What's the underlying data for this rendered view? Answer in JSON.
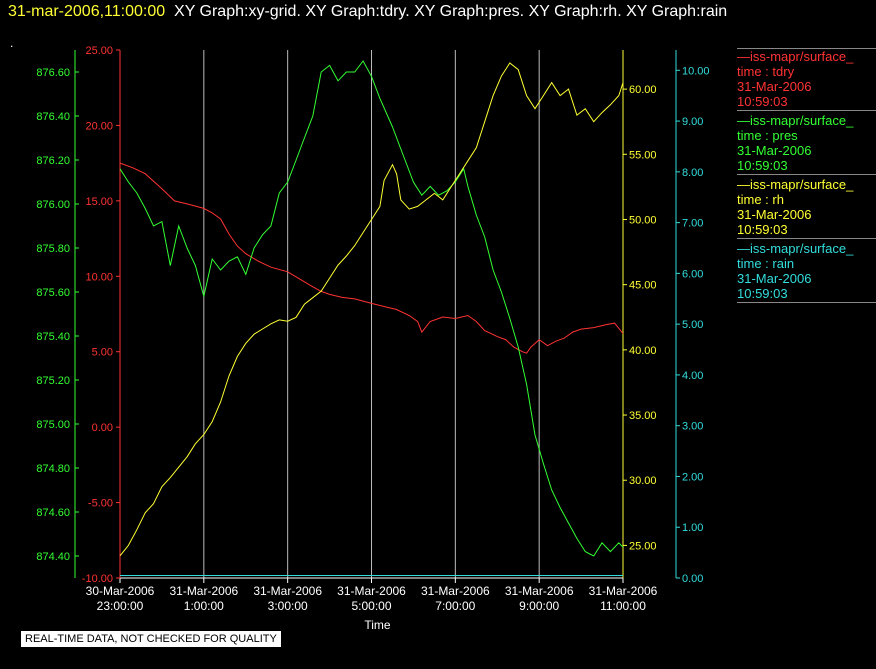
{
  "header": {
    "date": "31-mar-2006,11:00:00",
    "graphs": "XY Graph:xy-grid.  XY Graph:tdry.  XY Graph:pres.  XY Graph:rh.  XY Graph:rain"
  },
  "dot": ".",
  "legend": [
    {
      "name": "iss-mapr/surface_",
      "line1": "time : tdry",
      "line2": "31-Mar-2006",
      "line3": "10:59:03",
      "color": "#ff3333"
    },
    {
      "name": "iss-mapr/surface_",
      "line1": "time : pres",
      "line2": "31-Mar-2006",
      "line3": "10:59:03",
      "color": "#33ff33"
    },
    {
      "name": "iss-mapr/surface_",
      "line1": "time : rh",
      "line2": "31-Mar-2006",
      "line3": "10:59:03",
      "color": "#ffff33"
    },
    {
      "name": "iss-mapr/surface_",
      "line1": "time : rain",
      "line2": "31-Mar-2006",
      "line3": "10:59:03",
      "color": "#33dddd"
    }
  ],
  "footer": "REAL-TIME DATA, NOT CHECKED FOR QUALITY",
  "chart_data": {
    "type": "line",
    "xlabel": "Time",
    "x_ticks": [
      {
        "date": "30-Mar-2006",
        "time": "23:00:00",
        "hours": 0
      },
      {
        "date": "31-Mar-2006",
        "time": "1:00:00",
        "hours": 2
      },
      {
        "date": "31-Mar-2006",
        "time": "3:00:00",
        "hours": 4
      },
      {
        "date": "31-Mar-2006",
        "time": "5:00:00",
        "hours": 6
      },
      {
        "date": "31-Mar-2006",
        "time": "7:00:00",
        "hours": 8
      },
      {
        "date": "31-Mar-2006",
        "time": "9:00:00",
        "hours": 10
      },
      {
        "date": "31-Mar-2006",
        "time": "11:00:00",
        "hours": 12
      }
    ],
    "xlim": [
      0,
      12
    ],
    "grid_x": true,
    "axes": {
      "pres": {
        "color": "#33ff33",
        "range": [
          874.3,
          876.7
        ],
        "ticks": [
          "874.40",
          "874.60",
          "874.80",
          "875.00",
          "875.20",
          "875.40",
          "875.60",
          "875.80",
          "876.00",
          "876.20",
          "876.40",
          "876.60"
        ]
      },
      "tdry": {
        "color": "#ff3333",
        "range": [
          -10,
          25
        ],
        "ticks": [
          "-10.00",
          "-5.00",
          "0.00",
          "5.00",
          "10.00",
          "15.00",
          "20.00",
          "25.00"
        ]
      },
      "rh": {
        "color": "#ffff33",
        "range": [
          22.5,
          63.0
        ],
        "ticks": [
          "25.00",
          "30.00",
          "35.00",
          "40.00",
          "45.00",
          "50.00",
          "55.00",
          "60.00"
        ]
      },
      "rain": {
        "color": "#33dddd",
        "range": [
          0,
          10.4
        ],
        "ticks": [
          "0.00",
          "1.00",
          "2.00",
          "3.00",
          "4.00",
          "5.00",
          "6.00",
          "7.00",
          "8.00",
          "9.00",
          "10.00"
        ]
      }
    },
    "series": [
      {
        "name": "time : tdry",
        "axis": "tdry",
        "points": [
          [
            0,
            17.5
          ],
          [
            0.3,
            17.2
          ],
          [
            0.6,
            16.8
          ],
          [
            1.0,
            15.8
          ],
          [
            1.3,
            15.0
          ],
          [
            1.6,
            14.8
          ],
          [
            2.0,
            14.5
          ],
          [
            2.2,
            14.2
          ],
          [
            2.4,
            13.8
          ],
          [
            2.6,
            12.8
          ],
          [
            2.8,
            12.0
          ],
          [
            3.0,
            11.5
          ],
          [
            3.3,
            11.0
          ],
          [
            3.6,
            10.6
          ],
          [
            4.0,
            10.3
          ],
          [
            4.3,
            9.8
          ],
          [
            4.6,
            9.3
          ],
          [
            4.8,
            9.0
          ],
          [
            5.0,
            8.8
          ],
          [
            5.3,
            8.6
          ],
          [
            5.6,
            8.5
          ],
          [
            6.0,
            8.2
          ],
          [
            6.3,
            8.0
          ],
          [
            6.6,
            7.8
          ],
          [
            6.9,
            7.4
          ],
          [
            7.1,
            7.0
          ],
          [
            7.2,
            6.3
          ],
          [
            7.4,
            7.0
          ],
          [
            7.7,
            7.3
          ],
          [
            8.0,
            7.2
          ],
          [
            8.3,
            7.4
          ],
          [
            8.5,
            7.0
          ],
          [
            8.7,
            6.4
          ],
          [
            9.0,
            6.0
          ],
          [
            9.2,
            5.8
          ],
          [
            9.4,
            5.3
          ],
          [
            9.6,
            5.0
          ],
          [
            9.7,
            4.9
          ],
          [
            9.8,
            5.3
          ],
          [
            10.0,
            5.8
          ],
          [
            10.2,
            5.4
          ],
          [
            10.4,
            5.7
          ],
          [
            10.6,
            5.9
          ],
          [
            10.8,
            6.3
          ],
          [
            11.0,
            6.5
          ],
          [
            11.3,
            6.6
          ],
          [
            11.6,
            6.8
          ],
          [
            11.8,
            6.9
          ],
          [
            12.0,
            6.2
          ]
        ]
      },
      {
        "name": "time : pres",
        "axis": "pres",
        "points": [
          [
            0,
            876.16
          ],
          [
            0.2,
            876.1
          ],
          [
            0.4,
            876.05
          ],
          [
            0.6,
            875.98
          ],
          [
            0.8,
            875.9
          ],
          [
            1.0,
            875.92
          ],
          [
            1.2,
            875.72
          ],
          [
            1.4,
            875.9
          ],
          [
            1.6,
            875.8
          ],
          [
            1.8,
            875.72
          ],
          [
            2.0,
            875.58
          ],
          [
            2.2,
            875.75
          ],
          [
            2.4,
            875.7
          ],
          [
            2.6,
            875.74
          ],
          [
            2.8,
            875.76
          ],
          [
            3.0,
            875.68
          ],
          [
            3.2,
            875.8
          ],
          [
            3.4,
            875.86
          ],
          [
            3.6,
            875.9
          ],
          [
            3.8,
            876.05
          ],
          [
            4.0,
            876.1
          ],
          [
            4.2,
            876.2
          ],
          [
            4.4,
            876.3
          ],
          [
            4.6,
            876.4
          ],
          [
            4.8,
            876.6
          ],
          [
            5.0,
            876.63
          ],
          [
            5.2,
            876.56
          ],
          [
            5.4,
            876.6
          ],
          [
            5.6,
            876.6
          ],
          [
            5.8,
            876.65
          ],
          [
            6.0,
            876.58
          ],
          [
            6.2,
            876.48
          ],
          [
            6.5,
            876.35
          ],
          [
            6.8,
            876.2
          ],
          [
            7.0,
            876.1
          ],
          [
            7.2,
            876.04
          ],
          [
            7.4,
            876.08
          ],
          [
            7.6,
            876.04
          ],
          [
            7.8,
            876.06
          ],
          [
            8.0,
            876.1
          ],
          [
            8.2,
            876.16
          ],
          [
            8.3,
            876.08
          ],
          [
            8.5,
            875.95
          ],
          [
            8.7,
            875.85
          ],
          [
            8.9,
            875.7
          ],
          [
            9.1,
            875.6
          ],
          [
            9.3,
            875.48
          ],
          [
            9.5,
            875.35
          ],
          [
            9.7,
            875.18
          ],
          [
            9.9,
            874.95
          ],
          [
            10.1,
            874.82
          ],
          [
            10.3,
            874.7
          ],
          [
            10.5,
            874.62
          ],
          [
            10.7,
            874.55
          ],
          [
            10.9,
            874.48
          ],
          [
            11.1,
            874.42
          ],
          [
            11.3,
            874.4
          ],
          [
            11.5,
            874.46
          ],
          [
            11.7,
            874.42
          ],
          [
            11.9,
            874.46
          ],
          [
            12.0,
            874.44
          ]
        ]
      },
      {
        "name": "time : rh",
        "axis": "rh",
        "points": [
          [
            0,
            24.2
          ],
          [
            0.2,
            25.0
          ],
          [
            0.4,
            26.2
          ],
          [
            0.6,
            27.5
          ],
          [
            0.8,
            28.2
          ],
          [
            1.0,
            29.5
          ],
          [
            1.2,
            30.2
          ],
          [
            1.4,
            31.0
          ],
          [
            1.6,
            31.8
          ],
          [
            1.8,
            32.8
          ],
          [
            2.0,
            33.5
          ],
          [
            2.2,
            34.5
          ],
          [
            2.4,
            36.0
          ],
          [
            2.6,
            38.0
          ],
          [
            2.8,
            39.5
          ],
          [
            3.0,
            40.5
          ],
          [
            3.2,
            41.2
          ],
          [
            3.4,
            41.6
          ],
          [
            3.6,
            42.0
          ],
          [
            3.8,
            42.3
          ],
          [
            4.0,
            42.2
          ],
          [
            4.2,
            42.5
          ],
          [
            4.4,
            43.5
          ],
          [
            4.6,
            44.0
          ],
          [
            4.8,
            44.5
          ],
          [
            5.0,
            45.5
          ],
          [
            5.2,
            46.5
          ],
          [
            5.4,
            47.2
          ],
          [
            5.6,
            48.0
          ],
          [
            5.8,
            49.0
          ],
          [
            6.0,
            50.0
          ],
          [
            6.2,
            51.0
          ],
          [
            6.3,
            53.0
          ],
          [
            6.5,
            54.2
          ],
          [
            6.6,
            53.5
          ],
          [
            6.7,
            51.5
          ],
          [
            6.9,
            50.8
          ],
          [
            7.1,
            51.0
          ],
          [
            7.3,
            51.5
          ],
          [
            7.5,
            52.0
          ],
          [
            7.7,
            51.5
          ],
          [
            7.9,
            52.5
          ],
          [
            8.1,
            53.5
          ],
          [
            8.3,
            54.5
          ],
          [
            8.5,
            55.5
          ],
          [
            8.7,
            57.5
          ],
          [
            8.9,
            59.5
          ],
          [
            9.1,
            61.0
          ],
          [
            9.3,
            62.0
          ],
          [
            9.5,
            61.5
          ],
          [
            9.7,
            59.5
          ],
          [
            9.9,
            58.5
          ],
          [
            10.1,
            59.5
          ],
          [
            10.3,
            60.5
          ],
          [
            10.5,
            59.5
          ],
          [
            10.7,
            60.0
          ],
          [
            10.9,
            58.0
          ],
          [
            11.1,
            58.5
          ],
          [
            11.3,
            57.5
          ],
          [
            11.5,
            58.2
          ],
          [
            11.7,
            58.8
          ],
          [
            11.9,
            59.5
          ],
          [
            12.0,
            60.5
          ]
        ]
      },
      {
        "name": "time : rain",
        "axis": "rain",
        "points": [
          [
            0,
            0.05
          ],
          [
            12,
            0.05
          ]
        ]
      }
    ]
  }
}
